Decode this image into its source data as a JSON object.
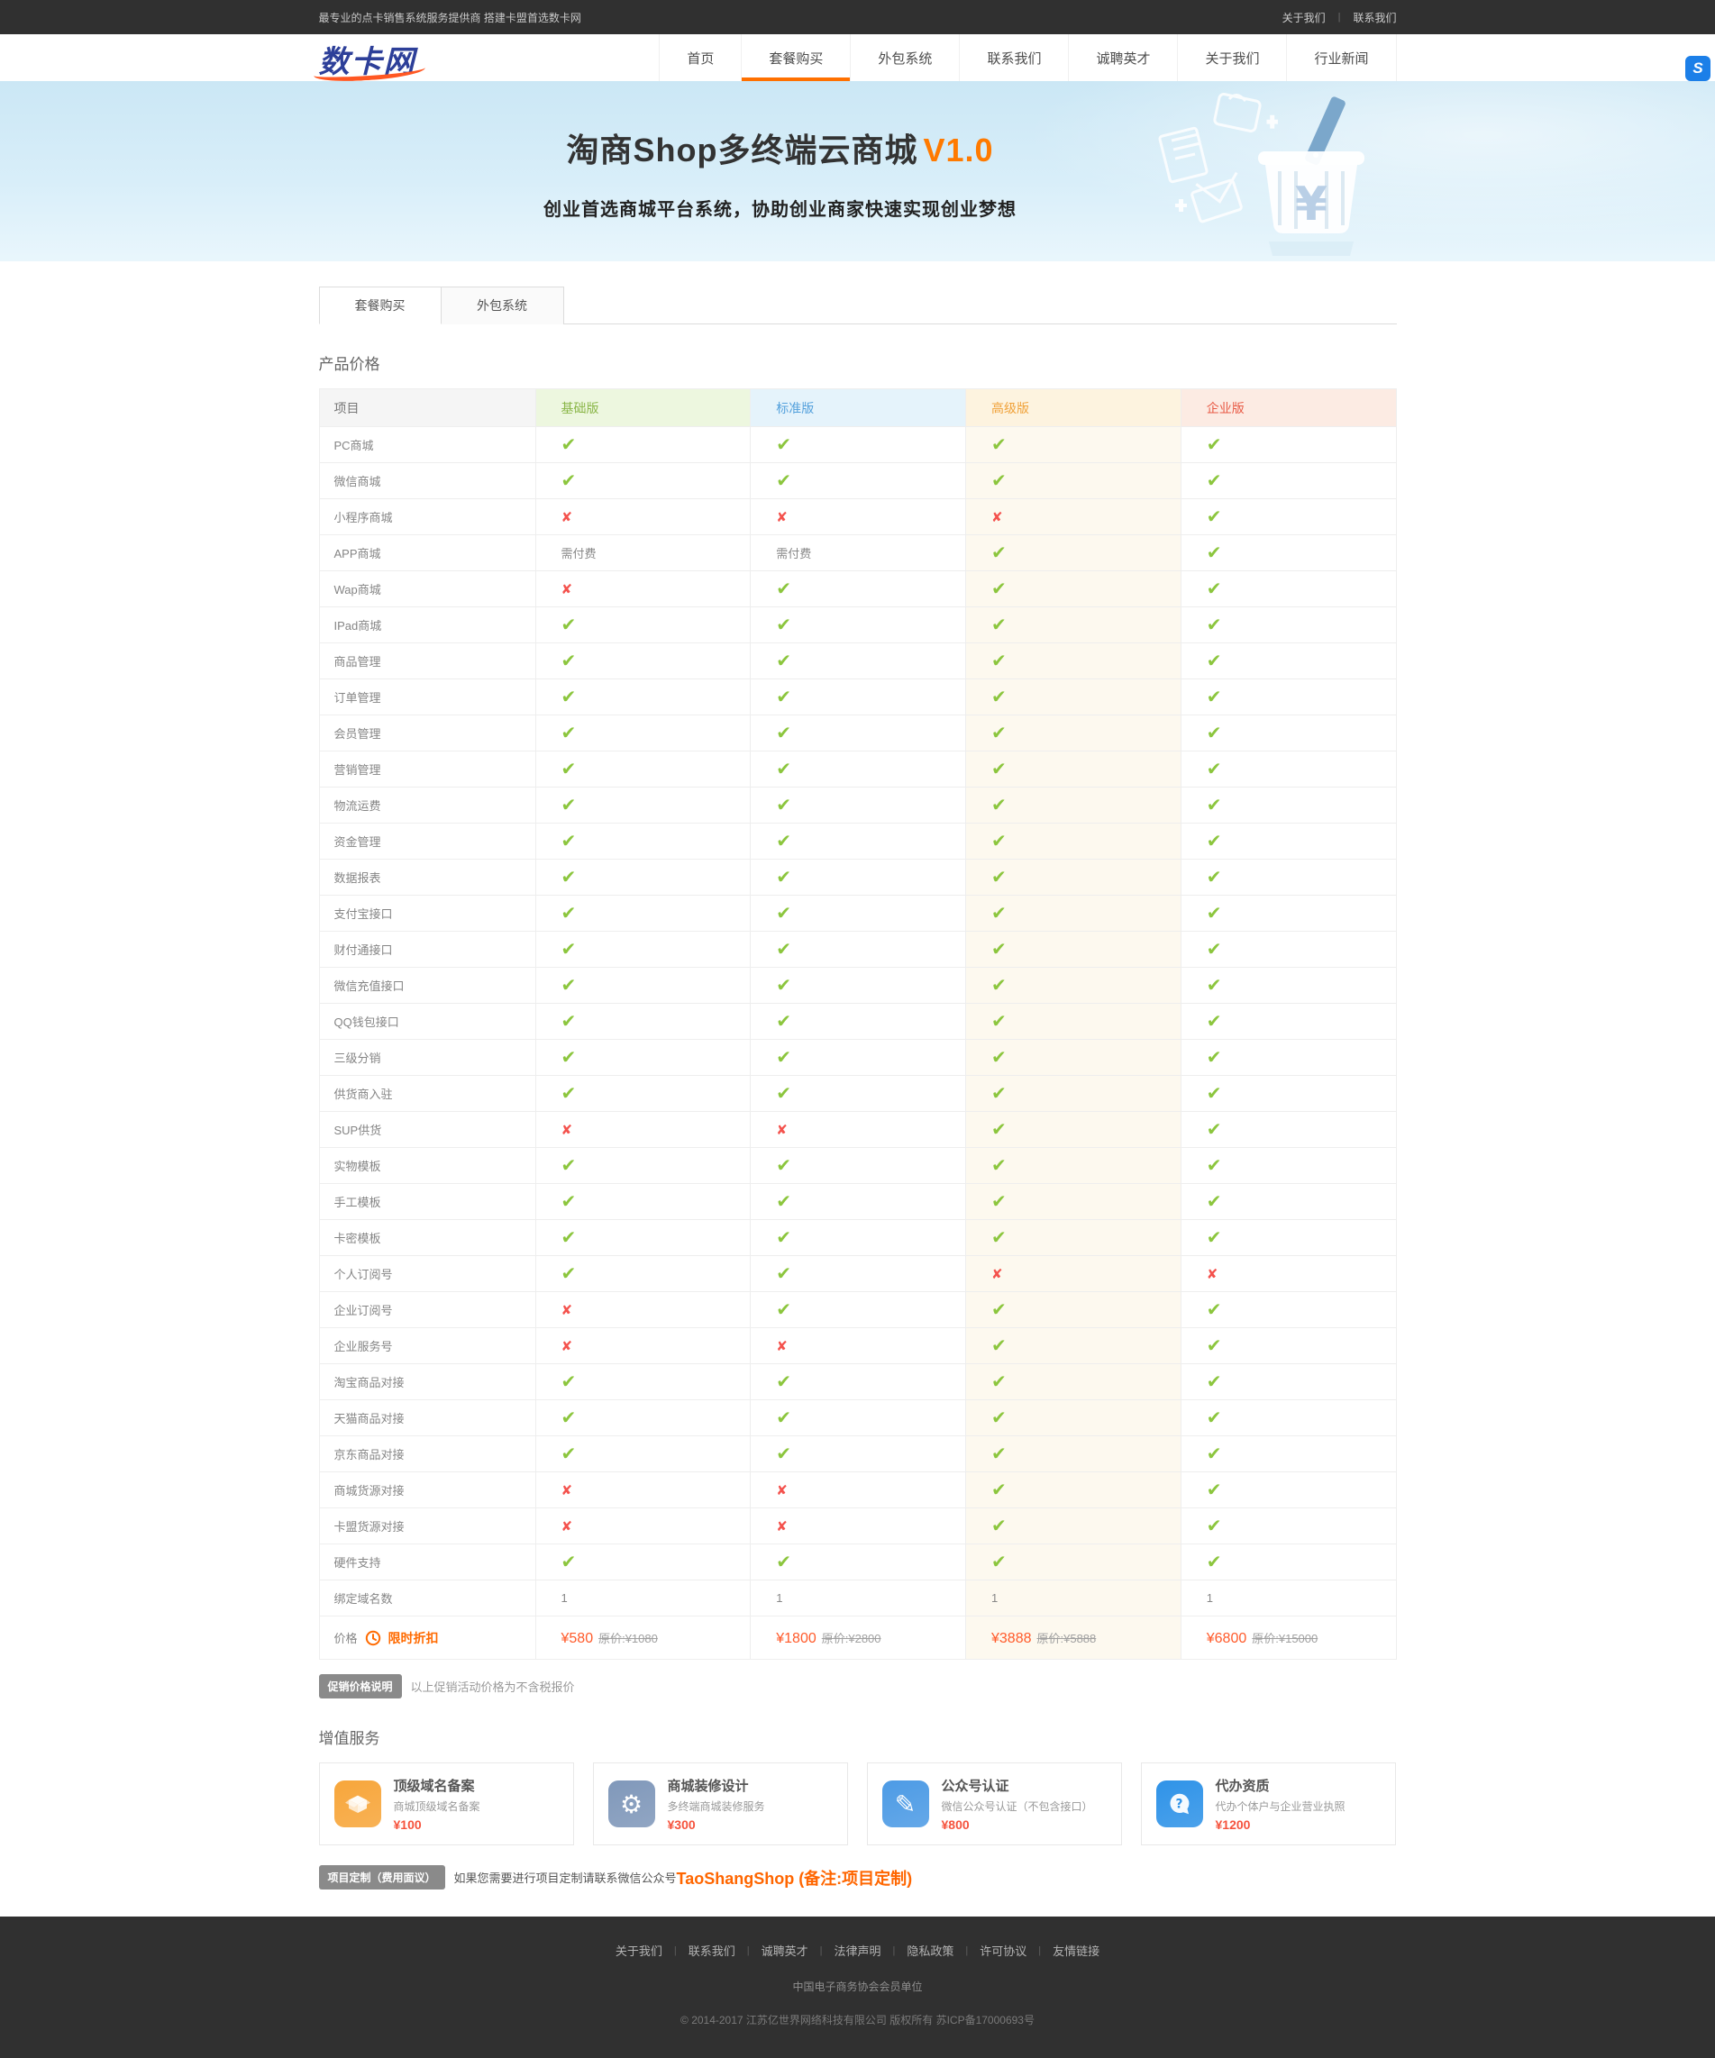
{
  "topbar": {
    "tagline": "最专业的点卡销售系统服务提供商 搭建卡盟首选数卡网",
    "links": [
      "关于我们",
      "联系我们"
    ]
  },
  "nav": {
    "logo": "数卡网",
    "items": [
      {
        "label": "首页",
        "active": false
      },
      {
        "label": "套餐购买",
        "active": true
      },
      {
        "label": "外包系统",
        "active": false
      },
      {
        "label": "联系我们",
        "active": false
      },
      {
        "label": "诚聘英才",
        "active": false
      },
      {
        "label": "关于我们",
        "active": false
      },
      {
        "label": "行业新闻",
        "active": false
      }
    ]
  },
  "float_button": {
    "label": "S"
  },
  "hero": {
    "title": "淘商Shop多终端云商城",
    "version": "V1.0",
    "subtitle": "创业首选商城平台系统，协助创业商家快速实现创业梦想"
  },
  "tabs": [
    {
      "label": "套餐购买",
      "active": true
    },
    {
      "label": "外包系统",
      "active": false
    }
  ],
  "pricing": {
    "section_title": "产品价格",
    "label_header": "项目",
    "versions": [
      {
        "name": "基础版",
        "color": "#8ab648",
        "bg": "#edf7df",
        "col_bg": ""
      },
      {
        "name": "标准版",
        "color": "#53a0dc",
        "bg": "#e5f3fb",
        "col_bg": ""
      },
      {
        "name": "高级版",
        "color": "#f0a23a",
        "bg": "#fdf3df",
        "col_bg": "#fdf9ef"
      },
      {
        "name": "企业版",
        "color": "#e85a45",
        "bg": "#fcebe3",
        "col_bg": ""
      }
    ],
    "check_color": "#8cc63e",
    "cross_color": "#f4524d",
    "rows": [
      {
        "label": "PC商城",
        "values": [
          "y",
          "y",
          "y",
          "y"
        ]
      },
      {
        "label": "微信商城",
        "values": [
          "y",
          "y",
          "y",
          "y"
        ]
      },
      {
        "label": "小程序商城",
        "values": [
          "n",
          "n",
          "n",
          "y"
        ]
      },
      {
        "label": "APP商城",
        "values": [
          "需付费",
          "需付费",
          "y",
          "y"
        ]
      },
      {
        "label": "Wap商城",
        "values": [
          "n",
          "y",
          "y",
          "y"
        ]
      },
      {
        "label": "IPad商城",
        "values": [
          "y",
          "y",
          "y",
          "y"
        ]
      },
      {
        "label": "商品管理",
        "values": [
          "y",
          "y",
          "y",
          "y"
        ]
      },
      {
        "label": "订单管理",
        "values": [
          "y",
          "y",
          "y",
          "y"
        ]
      },
      {
        "label": "会员管理",
        "values": [
          "y",
          "y",
          "y",
          "y"
        ]
      },
      {
        "label": "营销管理",
        "values": [
          "y",
          "y",
          "y",
          "y"
        ]
      },
      {
        "label": "物流运费",
        "values": [
          "y",
          "y",
          "y",
          "y"
        ]
      },
      {
        "label": "资金管理",
        "values": [
          "y",
          "y",
          "y",
          "y"
        ]
      },
      {
        "label": "数据报表",
        "values": [
          "y",
          "y",
          "y",
          "y"
        ]
      },
      {
        "label": "支付宝接口",
        "values": [
          "y",
          "y",
          "y",
          "y"
        ]
      },
      {
        "label": "财付通接口",
        "values": [
          "y",
          "y",
          "y",
          "y"
        ]
      },
      {
        "label": "微信充值接口",
        "values": [
          "y",
          "y",
          "y",
          "y"
        ]
      },
      {
        "label": "QQ钱包接口",
        "values": [
          "y",
          "y",
          "y",
          "y"
        ]
      },
      {
        "label": "三级分销",
        "values": [
          "y",
          "y",
          "y",
          "y"
        ]
      },
      {
        "label": "供货商入驻",
        "values": [
          "y",
          "y",
          "y",
          "y"
        ]
      },
      {
        "label": "SUP供货",
        "values": [
          "n",
          "n",
          "y",
          "y"
        ]
      },
      {
        "label": "实物模板",
        "values": [
          "y",
          "y",
          "y",
          "y"
        ]
      },
      {
        "label": "手工模板",
        "values": [
          "y",
          "y",
          "y",
          "y"
        ]
      },
      {
        "label": "卡密模板",
        "values": [
          "y",
          "y",
          "y",
          "y"
        ]
      },
      {
        "label": "个人订阅号",
        "values": [
          "y",
          "y",
          "n",
          "n"
        ]
      },
      {
        "label": "企业订阅号",
        "values": [
          "n",
          "y",
          "y",
          "y"
        ]
      },
      {
        "label": "企业服务号",
        "values": [
          "n",
          "n",
          "y",
          "y"
        ]
      },
      {
        "label": "淘宝商品对接",
        "values": [
          "y",
          "y",
          "y",
          "y"
        ]
      },
      {
        "label": "天猫商品对接",
        "values": [
          "y",
          "y",
          "y",
          "y"
        ]
      },
      {
        "label": "京东商品对接",
        "values": [
          "y",
          "y",
          "y",
          "y"
        ]
      },
      {
        "label": "商城货源对接",
        "values": [
          "n",
          "n",
          "y",
          "y"
        ]
      },
      {
        "label": "卡盟货源对接",
        "values": [
          "n",
          "n",
          "y",
          "y"
        ]
      },
      {
        "label": "硬件支持",
        "values": [
          "y",
          "y",
          "y",
          "y"
        ]
      },
      {
        "label": "绑定域名数",
        "values": [
          "1",
          "1",
          "1",
          "1"
        ]
      }
    ],
    "price_row": {
      "label": "价格",
      "badge": "限时折扣",
      "prices": [
        {
          "sale": "¥580",
          "original": "原价:¥1080"
        },
        {
          "sale": "¥1800",
          "original": "原价:¥2800"
        },
        {
          "sale": "¥3888",
          "original": "原价:¥5888"
        },
        {
          "sale": "¥6800",
          "original": "原价:¥15000"
        }
      ]
    },
    "note_badge": "促销价格说明",
    "note_text": "以上促销活动价格为不含税报价"
  },
  "services": {
    "section_title": "增值服务",
    "cards": [
      {
        "icon": "box-icon",
        "color": "#f7a63b",
        "title": "顶级域名备案",
        "desc": "商城顶级域名备案",
        "price": "¥100"
      },
      {
        "icon": "gear-icon",
        "color": "#8098ba",
        "title": "商城装修设计",
        "desc": "多终端商城装修服务",
        "price": "¥300"
      },
      {
        "icon": "pencil-icon",
        "color": "#4d9be5",
        "title": "公众号认证",
        "desc": "微信公众号认证（不包含接口）",
        "price": "¥800"
      },
      {
        "icon": "question-icon",
        "color": "#2f93e8",
        "title": "代办资质",
        "desc": "代办个体户与企业营业执照",
        "price": "¥1200"
      }
    ],
    "custom_badge": "项目定制（费用面议）",
    "custom_text": "如果您需要进行项目定制请联系微信公众号",
    "custom_highlight": "TaoShangShop (备注:项目定制)"
  },
  "footer": {
    "links": [
      "关于我们",
      "联系我们",
      "诚聘英才",
      "法律声明",
      "隐私政策",
      "许可协议",
      "友情链接"
    ],
    "membership": "中国电子商务协会会员单位",
    "copyright": "© 2014-2017 江苏亿世界网络科技有限公司 版权所有 苏ICP备17000693号"
  }
}
